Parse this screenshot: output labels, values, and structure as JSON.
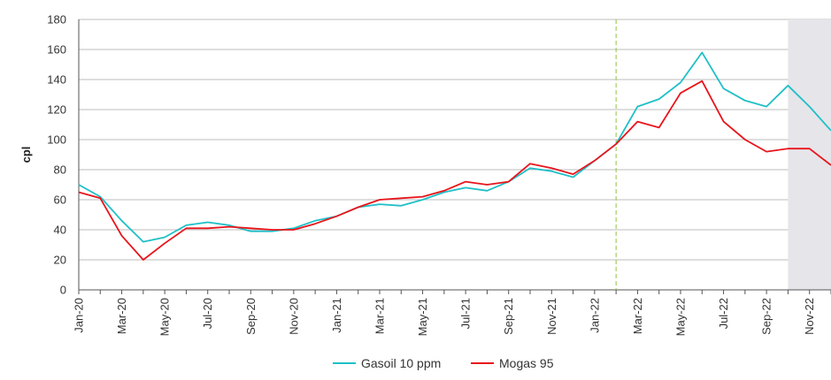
{
  "chart_data": {
    "type": "line",
    "title": "",
    "xlabel": "",
    "ylabel": "cpl",
    "ylim": [
      0,
      180
    ],
    "yticks": [
      0,
      20,
      40,
      60,
      80,
      100,
      120,
      140,
      160,
      180
    ],
    "grid": "horizontal",
    "legend_position": "bottom",
    "x": [
      "Jan-20",
      "Feb-20",
      "Mar-20",
      "Apr-20",
      "May-20",
      "Jun-20",
      "Jul-20",
      "Aug-20",
      "Sep-20",
      "Oct-20",
      "Nov-20",
      "Dec-20",
      "Jan-21",
      "Feb-21",
      "Mar-21",
      "Apr-21",
      "May-21",
      "Jun-21",
      "Jul-21",
      "Aug-21",
      "Sep-21",
      "Oct-21",
      "Nov-21",
      "Dec-21",
      "Jan-22",
      "Feb-22",
      "Mar-22",
      "Apr-22",
      "May-22",
      "Jun-22",
      "Jul-22",
      "Aug-22",
      "Sep-22",
      "Oct-22",
      "Nov-22",
      "Dec-22"
    ],
    "x_tick_labels": [
      "Jan-20",
      "Mar-20",
      "May-20",
      "Jul-20",
      "Sep-20",
      "Nov-20",
      "Jan-21",
      "Mar-21",
      "May-21",
      "Jul-21",
      "Sep-21",
      "Nov-21",
      "Jan-22",
      "Mar-22",
      "May-22",
      "Jul-22",
      "Sep-22",
      "Nov-22"
    ],
    "series": [
      {
        "name": "Gasoil 10 ppm",
        "color": "#1fbfc7",
        "values": [
          70,
          62,
          46,
          32,
          35,
          43,
          45,
          43,
          39,
          39,
          41,
          46,
          49,
          55,
          57,
          56,
          60,
          65,
          68,
          66,
          72,
          81,
          79,
          75,
          86,
          97,
          122,
          127,
          138,
          158,
          134,
          126,
          122,
          136,
          122,
          106
        ]
      },
      {
        "name": "Mogas 95",
        "color": "#e8141b",
        "values": [
          65,
          61,
          36,
          20,
          31,
          41,
          41,
          42,
          41,
          40,
          40,
          44,
          49,
          55,
          60,
          61,
          62,
          66,
          72,
          70,
          72,
          84,
          81,
          77,
          86,
          97,
          112,
          108,
          131,
          139,
          112,
          100,
          92,
          94,
          94,
          83
        ]
      }
    ],
    "annotations": {
      "divider_after": "Feb-22",
      "divider_color": "#8dc63f",
      "shaded_from": "Oct-22",
      "shaded_to": "Dec-22",
      "shaded_color": "#e6e5ea"
    }
  }
}
